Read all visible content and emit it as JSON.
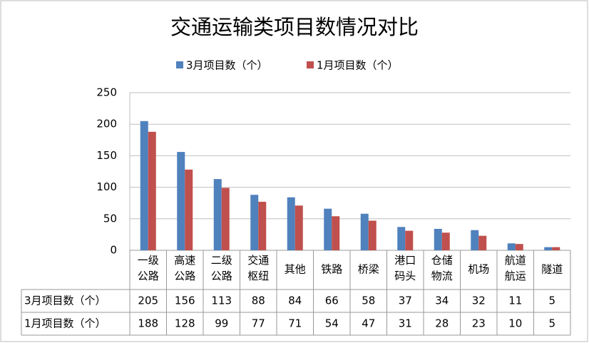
{
  "chart_data": {
    "type": "bar",
    "title": "交通运输类项目数情况对比",
    "categories": [
      "一级公路",
      "高速公路",
      "二级公路",
      "交通枢纽",
      "其他",
      "铁路",
      "桥梁",
      "港口码头",
      "仓储物流",
      "机场",
      "航道航运",
      "隧道"
    ],
    "series": [
      {
        "name": "3月项目数（个）",
        "color": "#4f81bd",
        "values": [
          205,
          156,
          113,
          88,
          84,
          66,
          58,
          37,
          34,
          32,
          11,
          5
        ]
      },
      {
        "name": "1月项目数（个）",
        "color": "#c0504d",
        "values": [
          188,
          128,
          99,
          77,
          71,
          54,
          47,
          31,
          28,
          23,
          10,
          5
        ]
      }
    ],
    "ylim": [
      0,
      250
    ],
    "yticks": [
      0,
      50,
      100,
      150,
      200,
      250
    ],
    "grid": true,
    "legend": "top"
  }
}
